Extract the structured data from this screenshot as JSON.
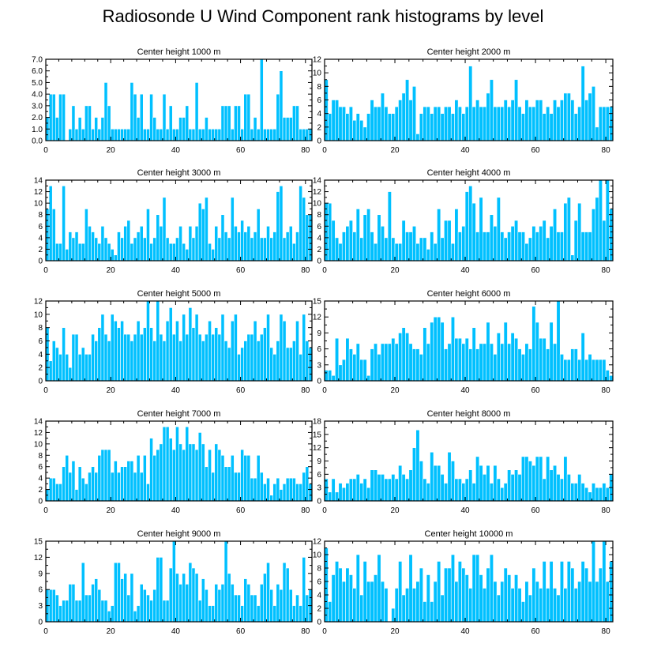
{
  "title": "Radiosonde U Wind Component rank histograms by level",
  "chart_data": [
    {
      "type": "bar",
      "title": "Center height 1000 m",
      "xlim": [
        0,
        82
      ],
      "ylim": [
        0,
        7
      ],
      "xticks": [
        0,
        20,
        40,
        60,
        80
      ],
      "yticks": [
        0,
        1,
        2,
        3,
        4,
        5,
        6,
        7
      ],
      "ytick_labels": [
        "0.0",
        "1.0",
        "2.0",
        "3.0",
        "4.0",
        "5.0",
        "6.0",
        "7.0"
      ],
      "values": [
        2,
        4,
        4,
        2,
        4,
        4,
        0,
        1,
        3,
        1,
        2,
        1,
        3,
        3,
        1,
        2,
        1,
        2,
        5,
        3,
        1,
        1,
        1,
        1,
        1,
        1,
        5,
        4,
        2,
        4,
        1,
        1,
        4,
        2,
        1,
        1,
        4,
        1,
        3,
        1,
        1,
        2,
        2,
        3,
        1,
        1,
        5,
        1,
        1,
        2,
        1,
        1,
        1,
        1,
        3,
        3,
        3,
        1,
        3,
        3,
        1,
        4,
        4,
        1,
        2,
        1,
        7,
        1,
        1,
        1,
        1,
        4,
        6,
        2,
        2,
        2,
        3,
        3,
        1,
        1,
        1,
        1
      ]
    },
    {
      "type": "bar",
      "title": "Center height 2000 m",
      "xlim": [
        0,
        82
      ],
      "ylim": [
        0,
        12
      ],
      "xticks": [
        0,
        20,
        40,
        60,
        80
      ],
      "yticks": [
        0,
        2,
        4,
        6,
        8,
        10,
        12
      ],
      "ytick_labels": [
        "0",
        "2",
        "4",
        "6",
        "8",
        "10",
        "12"
      ],
      "values": [
        9,
        4,
        6,
        6,
        5,
        5,
        4,
        5,
        3,
        4,
        3,
        2,
        4,
        6,
        5,
        5,
        7,
        5,
        4,
        4,
        5,
        6,
        7,
        9,
        6,
        8,
        1,
        4,
        5,
        5,
        4,
        5,
        5,
        4,
        5,
        5,
        4,
        6,
        5,
        4,
        5,
        11,
        5,
        6,
        5,
        5,
        7,
        9,
        5,
        5,
        5,
        6,
        5,
        6,
        9,
        5,
        4,
        6,
        5,
        5,
        6,
        6,
        4,
        5,
        4,
        6,
        5,
        6,
        7,
        7,
        6,
        4,
        5,
        11,
        6,
        7,
        8,
        2,
        5,
        5,
        5,
        5
      ]
    },
    {
      "type": "bar",
      "title": "Center height 3000 m",
      "xlim": [
        0,
        82
      ],
      "ylim": [
        0,
        14
      ],
      "xticks": [
        0,
        20,
        40,
        60,
        80
      ],
      "yticks": [
        0,
        2,
        4,
        6,
        8,
        10,
        12,
        14
      ],
      "ytick_labels": [
        "0",
        "2",
        "4",
        "6",
        "8",
        "10",
        "12",
        "14"
      ],
      "values": [
        9,
        13,
        9,
        3,
        3,
        13,
        2,
        5,
        4,
        5,
        3,
        3,
        9,
        6,
        5,
        4,
        3,
        6,
        4,
        3,
        2,
        1,
        5,
        4,
        6,
        7,
        3,
        4,
        5,
        6,
        4,
        9,
        3,
        4,
        8,
        6,
        11,
        4,
        3,
        3,
        4,
        6,
        3,
        2,
        6,
        4,
        6,
        10,
        9,
        11,
        3,
        2,
        6,
        4,
        8,
        5,
        4,
        11,
        6,
        5,
        7,
        5,
        6,
        4,
        5,
        9,
        4,
        4,
        6,
        4,
        5,
        12,
        13,
        4,
        5,
        6,
        3,
        5,
        13,
        11,
        8,
        8
      ]
    },
    {
      "type": "bar",
      "title": "Center height 4000 m",
      "xlim": [
        0,
        82
      ],
      "ylim": [
        0,
        14
      ],
      "xticks": [
        0,
        20,
        40,
        60,
        80
      ],
      "yticks": [
        0,
        2,
        4,
        6,
        8,
        10,
        12,
        14
      ],
      "ytick_labels": [
        "0",
        "2",
        "4",
        "6",
        "8",
        "10",
        "12",
        "14"
      ],
      "values": [
        10,
        10,
        7,
        4,
        3,
        5,
        6,
        7,
        5,
        9,
        4,
        8,
        9,
        5,
        3,
        8,
        6,
        4,
        12,
        4,
        3,
        3,
        7,
        5,
        5,
        6,
        3,
        4,
        4,
        2,
        5,
        3,
        9,
        4,
        7,
        7,
        3,
        9,
        5,
        6,
        12,
        13,
        10,
        5,
        11,
        5,
        5,
        8,
        6,
        11,
        5,
        4,
        5,
        6,
        7,
        5,
        5,
        3,
        4,
        6,
        5,
        6,
        7,
        4,
        6,
        9,
        5,
        5,
        10,
        11,
        1,
        7,
        10,
        5,
        5,
        5,
        9,
        11,
        14,
        7,
        14,
        9
      ]
    },
    {
      "type": "bar",
      "title": "Center height 5000 m",
      "xlim": [
        0,
        82
      ],
      "ylim": [
        0,
        12
      ],
      "xticks": [
        0,
        20,
        40,
        60,
        80
      ],
      "yticks": [
        0,
        2,
        4,
        6,
        8,
        10,
        12
      ],
      "ytick_labels": [
        "0",
        "2",
        "4",
        "6",
        "8",
        "10",
        "12"
      ],
      "values": [
        8,
        3,
        6,
        5,
        4,
        8,
        4,
        2,
        7,
        7,
        4,
        5,
        4,
        4,
        7,
        6,
        8,
        10,
        7,
        6,
        10,
        9,
        8,
        9,
        7,
        7,
        6,
        7,
        9,
        7,
        8,
        12,
        8,
        6,
        12,
        7,
        6,
        9,
        11,
        7,
        9,
        6,
        10,
        7,
        11,
        8,
        10,
        7,
        6,
        7,
        9,
        7,
        8,
        7,
        10,
        6,
        5,
        9,
        10,
        4,
        5,
        6,
        7,
        7,
        9,
        6,
        7,
        8,
        10,
        5,
        4,
        6,
        10,
        9,
        5,
        5,
        6,
        9,
        4,
        10,
        6,
        5
      ]
    },
    {
      "type": "bar",
      "title": "Center height 6000 m",
      "xlim": [
        0,
        82
      ],
      "ylim": [
        0,
        15
      ],
      "xticks": [
        0,
        20,
        40,
        60,
        80
      ],
      "yticks": [
        0,
        3,
        6,
        9,
        12,
        15
      ],
      "ytick_labels": [
        "0",
        "3",
        "6",
        "9",
        "12",
        "15"
      ],
      "values": [
        2,
        2,
        1,
        8,
        3,
        4,
        8,
        6,
        5,
        7,
        4,
        4,
        1,
        6,
        7,
        5,
        7,
        7,
        7,
        8,
        7,
        9,
        10,
        9,
        7,
        6,
        6,
        5,
        10,
        7,
        11,
        12,
        12,
        11,
        6,
        7,
        12,
        8,
        8,
        7,
        8,
        6,
        10,
        6,
        7,
        7,
        11,
        7,
        5,
        9,
        7,
        11,
        7,
        9,
        8,
        6,
        5,
        7,
        6,
        14,
        11,
        8,
        8,
        6,
        11,
        7,
        15,
        5,
        4,
        4,
        6,
        6,
        4,
        9,
        4,
        5,
        4,
        4,
        4,
        4,
        2,
        1
      ]
    },
    {
      "type": "bar",
      "title": "Center height 7000 m",
      "xlim": [
        0,
        82
      ],
      "ylim": [
        0,
        14
      ],
      "xticks": [
        0,
        20,
        40,
        60,
        80
      ],
      "yticks": [
        0,
        2,
        4,
        6,
        8,
        10,
        12,
        14
      ],
      "ytick_labels": [
        "0",
        "2",
        "4",
        "6",
        "8",
        "10",
        "12",
        "14"
      ],
      "values": [
        2,
        4,
        4,
        3,
        3,
        6,
        8,
        5,
        7,
        2,
        6,
        4,
        3,
        5,
        6,
        5,
        8,
        9,
        9,
        9,
        5,
        7,
        5,
        6,
        6,
        7,
        7,
        5,
        8,
        5,
        8,
        3,
        11,
        8,
        9,
        10,
        13,
        13,
        11,
        9,
        13,
        10,
        9,
        13,
        10,
        10,
        9,
        12,
        10,
        6,
        9,
        5,
        10,
        9,
        8,
        6,
        6,
        8,
        5,
        5,
        9,
        8,
        8,
        4,
        4,
        8,
        5,
        3,
        4,
        1,
        3,
        4,
        2,
        3,
        4,
        4,
        4,
        3,
        3,
        5,
        6,
        3
      ]
    },
    {
      "type": "bar",
      "title": "Center height 8000 m",
      "xlim": [
        0,
        82
      ],
      "ylim": [
        0,
        18
      ],
      "xticks": [
        0,
        20,
        40,
        60,
        80
      ],
      "yticks": [
        0,
        3,
        6,
        9,
        12,
        15,
        18
      ],
      "ytick_labels": [
        "0",
        "3",
        "6",
        "9",
        "12",
        "15",
        "18"
      ],
      "values": [
        5,
        2,
        5,
        2,
        4,
        3,
        4,
        5,
        5,
        6,
        4,
        5,
        3,
        7,
        7,
        6,
        6,
        5,
        5,
        6,
        5,
        8,
        6,
        5,
        7,
        12,
        16,
        9,
        5,
        4,
        11,
        8,
        8,
        6,
        4,
        11,
        9,
        5,
        5,
        4,
        5,
        7,
        4,
        10,
        8,
        6,
        8,
        4,
        8,
        5,
        3,
        4,
        7,
        6,
        7,
        6,
        10,
        10,
        9,
        8,
        10,
        10,
        5,
        10,
        7,
        8,
        6,
        5,
        10,
        6,
        4,
        4,
        6,
        4,
        3,
        2,
        4,
        3,
        3,
        4,
        3,
        6
      ]
    },
    {
      "type": "bar",
      "title": "Center height 9000 m",
      "xlim": [
        0,
        82
      ],
      "ylim": [
        0,
        15
      ],
      "xticks": [
        0,
        20,
        40,
        60,
        80
      ],
      "yticks": [
        0,
        3,
        6,
        9,
        12,
        15
      ],
      "ytick_labels": [
        "0",
        "3",
        "6",
        "9",
        "12",
        "15"
      ],
      "values": [
        6,
        6,
        6,
        5,
        3,
        4,
        4,
        7,
        7,
        4,
        4,
        11,
        5,
        5,
        7,
        8,
        6,
        4,
        4,
        2,
        3,
        11,
        11,
        8,
        9,
        5,
        9,
        2,
        3,
        7,
        6,
        5,
        4,
        6,
        12,
        12,
        4,
        4,
        10,
        15,
        9,
        7,
        9,
        7,
        11,
        10,
        9,
        4,
        8,
        6,
        3,
        3,
        7,
        6,
        7,
        15,
        9,
        7,
        5,
        5,
        3,
        8,
        7,
        5,
        5,
        3,
        7,
        9,
        11,
        6,
        3,
        7,
        6,
        11,
        10,
        6,
        3,
        5,
        3,
        12,
        5,
        6
      ]
    },
    {
      "type": "bar",
      "title": "Center height 10000 m",
      "xlim": [
        0,
        82
      ],
      "ylim": [
        0,
        12
      ],
      "xticks": [
        0,
        20,
        40,
        60,
        80
      ],
      "yticks": [
        0,
        2,
        4,
        6,
        8,
        10,
        12
      ],
      "ytick_labels": [
        "0",
        "2",
        "4",
        "6",
        "8",
        "10",
        "12"
      ],
      "values": [
        11,
        3,
        7,
        9,
        8,
        6,
        8,
        7,
        5,
        10,
        4,
        9,
        6,
        6,
        7,
        10,
        6,
        5,
        0,
        2,
        5,
        9,
        4,
        5,
        10,
        5,
        6,
        8,
        3,
        7,
        3,
        6,
        9,
        4,
        8,
        8,
        10,
        6,
        9,
        8,
        7,
        5,
        10,
        10,
        7,
        5,
        8,
        10,
        6,
        4,
        6,
        8,
        7,
        5,
        7,
        5,
        3,
        6,
        4,
        8,
        6,
        5,
        9,
        5,
        9,
        5,
        4,
        9,
        5,
        9,
        8,
        5,
        6,
        9,
        8,
        6,
        12,
        6,
        8,
        12,
        6,
        9
      ]
    }
  ]
}
